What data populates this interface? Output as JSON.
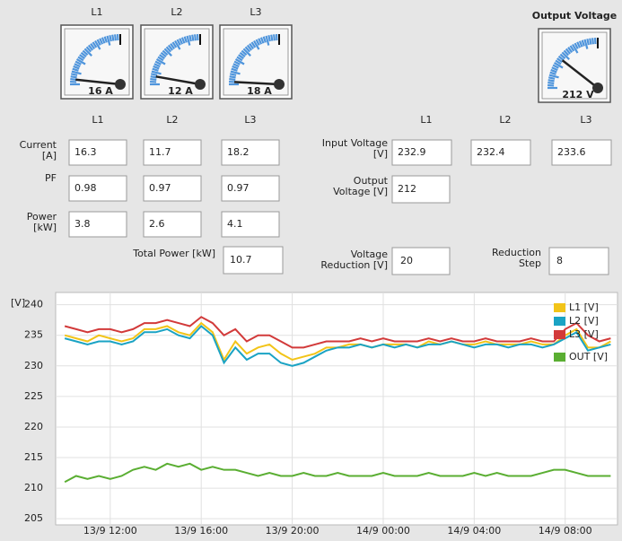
{
  "gauges": [
    {
      "label": "L1",
      "reading": "16 A"
    },
    {
      "label": "L2",
      "reading": "12 A"
    },
    {
      "label": "L3",
      "reading": "18 A"
    },
    {
      "label": "Output Voltage",
      "reading": "212 V"
    }
  ],
  "left_panel": {
    "columns": [
      "L1",
      "L2",
      "L3"
    ],
    "rows": [
      {
        "label": [
          "Current",
          "[A]"
        ],
        "values": [
          16.3,
          11.7,
          18.2
        ]
      },
      {
        "label": [
          "PF"
        ],
        "values": [
          0.98,
          0.97,
          0.97
        ]
      },
      {
        "label": [
          "Power",
          "[kW]"
        ],
        "values": [
          3.8,
          2.6,
          4.1
        ]
      }
    ],
    "total_label": "Total Power [kW]",
    "total": 10.7
  },
  "right_panel": {
    "columns": [
      "L1",
      "L2",
      "L3"
    ],
    "input_label": [
      "Input Voltage",
      "[V]"
    ],
    "input_values": [
      232.9,
      232.4,
      233.6
    ],
    "output_label": [
      "Output",
      "Voltage [V]"
    ],
    "output_value": 212,
    "reduction_label": [
      "Voltage",
      "Reduction [V]"
    ],
    "reduction_value": 20,
    "step_label": [
      "Reduction",
      "Step"
    ],
    "step_value": 8
  },
  "chart_data": {
    "type": "line",
    "y_label": "[V]",
    "grid": true,
    "legend": "top-right",
    "x": [
      10,
      10.5,
      11,
      11.5,
      12,
      12.5,
      13,
      13.5,
      14,
      14.5,
      15,
      15.5,
      16,
      16.5,
      17,
      17.5,
      18,
      18.5,
      19,
      19.5,
      20,
      20.5,
      21,
      21.5,
      22,
      22.5,
      23,
      23.5,
      24,
      24.5,
      25,
      25.5,
      26,
      26.5,
      27,
      27.5,
      28,
      28.5,
      29,
      29.5,
      30,
      30.5,
      31,
      31.5,
      32,
      32.5,
      33,
      33.5,
      34
    ],
    "xlim": [
      9.6,
      34.3
    ],
    "xticks": [
      {
        "value": 12,
        "label": "13/9 12:00"
      },
      {
        "value": 16,
        "label": "13/9 16:00"
      },
      {
        "value": 20,
        "label": "13/9 20:00"
      },
      {
        "value": 24,
        "label": "14/9 00:00"
      },
      {
        "value": 28,
        "label": "14/9 04:00"
      },
      {
        "value": 32,
        "label": "14/9 08:00"
      }
    ],
    "ylim": [
      204,
      242
    ],
    "yticks": [
      205,
      210,
      215,
      220,
      225,
      230,
      235,
      240
    ],
    "series": [
      {
        "name": "L1 [V]",
        "color": "#f2c418",
        "values": [
          235,
          234.5,
          234,
          235,
          234.5,
          234,
          234.5,
          236,
          236,
          236.5,
          235.5,
          235,
          237,
          235.5,
          231,
          234,
          232,
          233,
          233.5,
          232,
          231,
          231.5,
          232,
          233,
          233,
          233.5,
          233.5,
          233,
          233.5,
          233.5,
          233.5,
          233,
          234,
          233.5,
          234,
          233.5,
          233.5,
          234,
          233.5,
          233.5,
          233.5,
          234,
          233.5,
          233.5,
          235,
          236,
          233,
          233,
          234
        ]
      },
      {
        "name": "L2 [V]",
        "color": "#1aa3c4",
        "values": [
          234.5,
          234,
          233.5,
          234,
          234,
          233.5,
          234,
          235.5,
          235.5,
          236,
          235,
          234.5,
          236.5,
          235,
          230.5,
          233,
          231,
          232,
          232,
          230.5,
          230,
          230.5,
          231.5,
          232.5,
          233,
          233,
          233.5,
          233,
          233.5,
          233,
          233.5,
          233,
          233.5,
          233.5,
          234,
          233.5,
          233,
          233.5,
          233.5,
          233,
          233.5,
          233.5,
          233,
          233.5,
          234.5,
          235.5,
          232.5,
          233,
          233.5
        ]
      },
      {
        "name": "L3 [V]",
        "color": "#d23a3a",
        "values": [
          236.5,
          236,
          235.5,
          236,
          236,
          235.5,
          236,
          237,
          237,
          237.5,
          237,
          236.5,
          238,
          237,
          235,
          236,
          234,
          235,
          235,
          234,
          233,
          233,
          233.5,
          234,
          234,
          234,
          234.5,
          234,
          234.5,
          234,
          234,
          234,
          234.5,
          234,
          234.5,
          234,
          234,
          234.5,
          234,
          234,
          234,
          234.5,
          234,
          234,
          236,
          237,
          235,
          234,
          234.5
        ]
      },
      {
        "name": "OUT [V]",
        "color": "#5aae32",
        "values": [
          211,
          212,
          211.5,
          212,
          211.5,
          212,
          213,
          213.5,
          213,
          214,
          213.5,
          214,
          213,
          213.5,
          213,
          213,
          212.5,
          212,
          212.5,
          212,
          212,
          212.5,
          212,
          212,
          212.5,
          212,
          212,
          212,
          212.5,
          212,
          212,
          212,
          212.5,
          212,
          212,
          212,
          212.5,
          212,
          212.5,
          212,
          212,
          212,
          212.5,
          213,
          213,
          212.5,
          212,
          212,
          212
        ]
      }
    ]
  }
}
